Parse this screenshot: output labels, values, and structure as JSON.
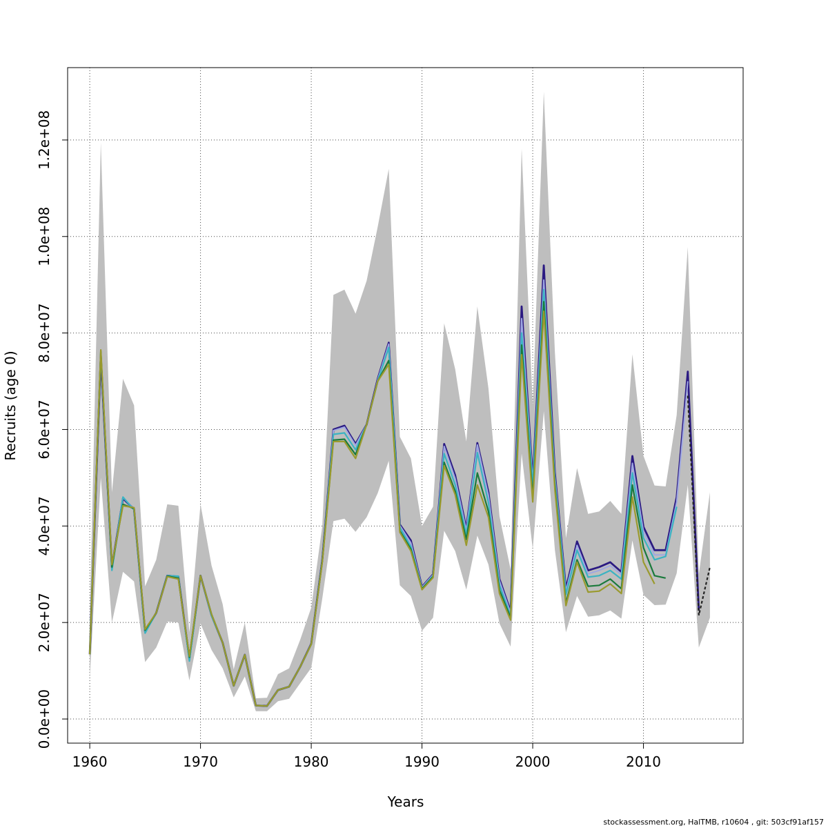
{
  "chart_data": {
    "type": "line",
    "title": "",
    "xlabel": "Years",
    "ylabel": "Recruits (age 0)",
    "xlim": [
      1958,
      2019
    ],
    "ylim": [
      -5000000,
      135000000
    ],
    "grid": true,
    "x_ticks": [
      1960,
      1970,
      1980,
      1990,
      2000,
      2010
    ],
    "x_tick_labels": [
      "1960",
      "1970",
      "1980",
      "1990",
      "2000",
      "2010"
    ],
    "y_ticks": [
      0,
      20000000,
      40000000,
      60000000,
      80000000,
      100000000,
      120000000
    ],
    "y_tick_labels": [
      "0.0e+00",
      "2.0e+07",
      "4.0e+07",
      "6.0e+07",
      "8.0e+07",
      "1.0e+08",
      "1.2e+08"
    ],
    "band": {
      "color": "#bebebe",
      "x": [
        1960,
        1961,
        1962,
        1963,
        1964,
        1965,
        1966,
        1967,
        1968,
        1969,
        1970,
        1971,
        1972,
        1973,
        1974,
        1975,
        1976,
        1977,
        1978,
        1979,
        1980,
        1981,
        1982,
        1983,
        1984,
        1985,
        1986,
        1987,
        1988,
        1989,
        1990,
        1991,
        1992,
        1993,
        1994,
        1995,
        1996,
        1997,
        1998,
        1999,
        2000,
        2001,
        2002,
        2003,
        2004,
        2005,
        2006,
        2007,
        2008,
        2009,
        2010,
        2011,
        2012,
        2013,
        2014,
        2015,
        2016
      ],
      "upper": [
        21000000,
        119500000,
        47000000,
        70500000,
        65000000,
        27500000,
        33000000,
        44500000,
        44200000,
        18000000,
        44500000,
        31800000,
        23800000,
        10300000,
        20000000,
        4300000,
        4400000,
        9300000,
        10500000,
        16400000,
        23100000,
        40000000,
        87900000,
        89000000,
        84000000,
        90800000,
        102000000,
        114000000,
        58500000,
        54000000,
        40000000,
        44000000,
        82000000,
        72500000,
        57500000,
        85500000,
        68500000,
        42000000,
        31000000,
        118200000,
        65000000,
        130000000,
        76000000,
        37500000,
        52000000,
        42500000,
        43000000,
        45200000,
        42500000,
        75600000,
        54500000,
        48400000,
        48200000,
        63000000,
        97800000,
        30000000,
        47000000
      ],
      "lower": [
        8500000,
        50000000,
        20000000,
        30500000,
        28500000,
        11800000,
        14800000,
        20200000,
        20000000,
        8000000,
        19800000,
        14300000,
        10500000,
        4500000,
        8800000,
        1600000,
        1600000,
        3700000,
        4200000,
        7400000,
        10600000,
        25000000,
        41000000,
        41500000,
        38800000,
        41800000,
        46800000,
        53500000,
        27700000,
        25500000,
        18300000,
        21000000,
        39000000,
        34800000,
        26800000,
        38000000,
        32000000,
        19800000,
        15000000,
        55000000,
        35200000,
        63800000,
        35000000,
        18000000,
        25500000,
        21200000,
        21500000,
        22500000,
        20800000,
        37000000,
        25700000,
        23600000,
        23700000,
        30200000,
        48500000,
        14800000,
        21000000
      ]
    },
    "series": [
      {
        "color": "#2b1a82",
        "width": 2.8,
        "x": [
          1960,
          1961,
          1962,
          1963,
          1964,
          1965,
          1966,
          1967,
          1968,
          1969,
          1970,
          1971,
          1972,
          1973,
          1974,
          1975,
          1976,
          1977,
          1978,
          1979,
          1980,
          1981,
          1982,
          1983,
          1984,
          1985,
          1986,
          1987,
          1988,
          1989,
          1990,
          1991,
          1992,
          1993,
          1994,
          1995,
          1996,
          1997,
          1998,
          1999,
          2000,
          2001,
          2002,
          2003,
          2004,
          2005,
          2006,
          2007,
          2008,
          2009,
          2010,
          2011,
          2012,
          2013,
          2014,
          2015
        ],
        "values": [
          13400000,
          75000000,
          31500000,
          45700000,
          43500000,
          18100000,
          22000000,
          29700000,
          29500000,
          12500000,
          29700000,
          21500000,
          15800000,
          6900000,
          13300000,
          2800000,
          2700000,
          6000000,
          6700000,
          10800000,
          15600000,
          33000000,
          60000000,
          60800000,
          57000000,
          61000000,
          70500000,
          78000000,
          40300000,
          37000000,
          27400000,
          30000000,
          57000000,
          50500000,
          39500000,
          57200000,
          47000000,
          29000000,
          22300000,
          85500000,
          49500000,
          94000000,
          51000000,
          27000000,
          36800000,
          30800000,
          31500000,
          32500000,
          30500000,
          54500000,
          39800000,
          35000000,
          35000000,
          46000000,
          72000000,
          22500000
        ]
      },
      {
        "color": "#9ea7e2",
        "width": 2.0,
        "x": [
          1960,
          1961,
          1962,
          1963,
          1964,
          1965,
          1966,
          1967,
          1968,
          1969,
          1970,
          1971,
          1972,
          1973,
          1974,
          1975,
          1976,
          1977,
          1978,
          1979,
          1980,
          1981,
          1982,
          1983,
          1984,
          1985,
          1986,
          1987,
          1988,
          1989,
          1990,
          1991,
          1992,
          1993,
          1994,
          1995,
          1996,
          1997,
          1998,
          1999,
          2000,
          2001,
          2002,
          2003,
          2004,
          2005,
          2006,
          2007,
          2008,
          2009,
          2010,
          2011,
          2012,
          2013,
          2014
        ],
        "values": [
          13400000,
          75500000,
          31300000,
          45900000,
          43500000,
          18100000,
          22000000,
          29700000,
          29400000,
          12400000,
          29700000,
          21500000,
          15800000,
          6900000,
          13300000,
          2800000,
          2700000,
          6000000,
          6700000,
          10800000,
          15600000,
          33000000,
          59800000,
          60500000,
          56700000,
          61000000,
          70300000,
          77700000,
          40100000,
          36500000,
          27300000,
          29900000,
          56500000,
          49800000,
          39100000,
          56800000,
          46300000,
          28600000,
          22000000,
          83000000,
          49000000,
          91000000,
          50300000,
          26500000,
          36000000,
          30100000,
          30800000,
          31800000,
          29900000,
          53000000,
          38800000,
          34000000,
          34000000,
          45000000,
          70000000
        ]
      },
      {
        "color": "#3bb3c2",
        "width": 2.2,
        "x": [
          1960,
          1961,
          1962,
          1963,
          1964,
          1965,
          1966,
          1967,
          1968,
          1969,
          1970,
          1971,
          1972,
          1973,
          1974,
          1975,
          1976,
          1977,
          1978,
          1979,
          1980,
          1981,
          1982,
          1983,
          1984,
          1985,
          1986,
          1987,
          1988,
          1989,
          1990,
          1991,
          1992,
          1993,
          1994,
          1995,
          1996,
          1997,
          1998,
          1999,
          2000,
          2001,
          2002,
          2003,
          2004,
          2005,
          2006,
          2007,
          2008,
          2009,
          2010,
          2011,
          2012,
          2013
        ],
        "values": [
          13400000,
          76000000,
          30800000,
          46000000,
          43300000,
          17800000,
          22000000,
          29700000,
          29600000,
          12000000,
          29700000,
          21400000,
          15800000,
          6900000,
          13300000,
          2800000,
          2700000,
          6000000,
          6700000,
          10800000,
          15500000,
          32800000,
          59000000,
          59300000,
          55800000,
          61000000,
          70000000,
          77000000,
          39700000,
          35700000,
          27000000,
          29700000,
          55000000,
          48500000,
          38200000,
          55200000,
          44800000,
          27700000,
          21400000,
          80000000,
          48300000,
          89000000,
          49300000,
          25800000,
          35000000,
          29400000,
          29700000,
          30800000,
          29000000,
          51000000,
          37500000,
          33000000,
          33700000,
          44000000
        ]
      },
      {
        "color": "#1a7a3c",
        "width": 2.2,
        "x": [
          1960,
          1961,
          1962,
          1963,
          1964,
          1965,
          1966,
          1967,
          1968,
          1969,
          1970,
          1971,
          1972,
          1973,
          1974,
          1975,
          1976,
          1977,
          1978,
          1979,
          1980,
          1981,
          1982,
          1983,
          1984,
          1985,
          1986,
          1987,
          1988,
          1989,
          1990,
          1991,
          1992,
          1993,
          1994,
          1995,
          1996,
          1997,
          1998,
          1999,
          2000,
          2001,
          2002,
          2003,
          2004,
          2005,
          2006,
          2007,
          2008,
          2009,
          2010,
          2011,
          2012
        ],
        "values": [
          13400000,
          76200000,
          31500000,
          44500000,
          43600000,
          18400000,
          22000000,
          29600000,
          29200000,
          12800000,
          29700000,
          21700000,
          15800000,
          6900000,
          13300000,
          2800000,
          2700000,
          6000000,
          6700000,
          10800000,
          15500000,
          32700000,
          57800000,
          58000000,
          54800000,
          61000000,
          70000000,
          74300000,
          39000000,
          35200000,
          27000000,
          29500000,
          53200000,
          47200000,
          37200000,
          51000000,
          43000000,
          26700000,
          21000000,
          77500000,
          46000000,
          86500000,
          48300000,
          24000000,
          33000000,
          27500000,
          27700000,
          29000000,
          27000000,
          48500000,
          35500000,
          29700000,
          29200000
        ]
      },
      {
        "color": "#9a9a2e",
        "width": 2.2,
        "x": [
          1960,
          1961,
          1962,
          1963,
          1964,
          1965,
          1966,
          1967,
          1968,
          1969,
          1970,
          1971,
          1972,
          1973,
          1974,
          1975,
          1976,
          1977,
          1978,
          1979,
          1980,
          1981,
          1982,
          1983,
          1984,
          1985,
          1986,
          1987,
          1988,
          1989,
          1990,
          1991,
          1992,
          1993,
          1994,
          1995,
          1996,
          1997,
          1998,
          1999,
          2000,
          2001,
          2002,
          2003,
          2004,
          2005,
          2006,
          2007,
          2008,
          2009,
          2010,
          2011
        ],
        "values": [
          13400000,
          76500000,
          32000000,
          44200000,
          43800000,
          18600000,
          22000000,
          29500000,
          29000000,
          13000000,
          29700000,
          21700000,
          15800000,
          6900000,
          13300000,
          2800000,
          2700000,
          6000000,
          6700000,
          10800000,
          15500000,
          32500000,
          57500000,
          57500000,
          54000000,
          61000000,
          70000000,
          73500000,
          38700000,
          34800000,
          26800000,
          29300000,
          52500000,
          46500000,
          36000000,
          48500000,
          41800000,
          26000000,
          20500000,
          75500000,
          45000000,
          84500000,
          47500000,
          23500000,
          32500000,
          26300000,
          26500000,
          28000000,
          26000000,
          46000000,
          32500000,
          28000000
        ]
      }
    ],
    "forecast": {
      "color": "#222222",
      "dash": "4,3",
      "x": [
        2014,
        2015,
        2016
      ],
      "values": [
        67000000,
        21500000,
        31500000
      ]
    }
  },
  "footer": "stockassessment.org, HalTMB, r10604 , git: 503cf91af157"
}
